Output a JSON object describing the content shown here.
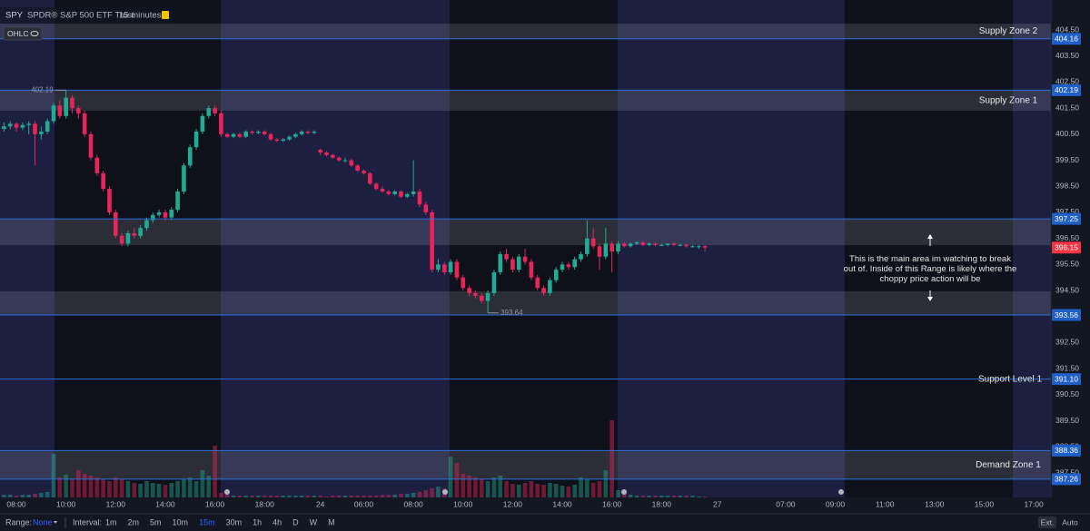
{
  "header": {
    "symbol": "SPY",
    "name": "SPDR® S&P 500 ETF Trust",
    "interval": "15 minutes",
    "style": "OHLC"
  },
  "toolbar": {
    "range_label": "Range:",
    "range_value": "None",
    "interval_label": "Interval:",
    "intervals": [
      "1m",
      "2m",
      "5m",
      "10m",
      "15m",
      "30m",
      "1h",
      "4h",
      "D",
      "W",
      "M"
    ],
    "active_interval": 4,
    "ext": "Ext.",
    "auto": "Auto"
  },
  "chart_data": {
    "type": "candlestick",
    "up_color": "#22ab94",
    "down_color": "#e8245b",
    "level_color": "#2a6fdb",
    "last_color": "#f23645",
    "xlim": [
      -2.64,
      166.77
    ],
    "ylim": [
      386.56,
      405.65
    ],
    "xticks": [
      {
        "value": 0,
        "label": "08:00"
      },
      {
        "value": 8,
        "label": "10:00"
      },
      {
        "value": 16,
        "label": "12:00"
      },
      {
        "value": 24,
        "label": "14:00"
      },
      {
        "value": 32,
        "label": "16:00"
      },
      {
        "value": 40,
        "label": "18:00"
      },
      {
        "value": 49,
        "label": "24"
      },
      {
        "value": 56,
        "label": "06:00"
      },
      {
        "value": 64,
        "label": "08:00"
      },
      {
        "value": 72,
        "label": "10:00"
      },
      {
        "value": 80,
        "label": "12:00"
      },
      {
        "value": 88,
        "label": "14:00"
      },
      {
        "value": 96,
        "label": "16:00"
      },
      {
        "value": 104,
        "label": "18:00"
      },
      {
        "value": 113,
        "label": "27"
      },
      {
        "value": 124,
        "label": "07:00"
      },
      {
        "value": 132,
        "label": "09:00"
      },
      {
        "value": 140,
        "label": "11:00"
      },
      {
        "value": 148,
        "label": "13:00"
      },
      {
        "value": 156,
        "label": "15:00"
      },
      {
        "value": 164,
        "label": "17:00"
      }
    ],
    "yticks": [
      {
        "value": 404.5,
        "label": "404.50"
      },
      {
        "value": 403.5,
        "label": "403.50"
      },
      {
        "value": 402.5,
        "label": "402.50"
      },
      {
        "value": 401.5,
        "label": "401.50"
      },
      {
        "value": 400.5,
        "label": "400.50"
      },
      {
        "value": 399.5,
        "label": "399.50"
      },
      {
        "value": 398.5,
        "label": "398.50"
      },
      {
        "value": 397.5,
        "label": "397.50"
      },
      {
        "value": 396.5,
        "label": "396.50"
      },
      {
        "value": 395.5,
        "label": "395.50"
      },
      {
        "value": 394.5,
        "label": "394.50"
      },
      {
        "value": 393.5,
        "label": "393.50"
      },
      {
        "value": 392.5,
        "label": "392.50"
      },
      {
        "value": 391.5,
        "label": "391.50"
      },
      {
        "value": 390.5,
        "label": "390.50"
      },
      {
        "value": 389.5,
        "label": "389.50"
      },
      {
        "value": 388.5,
        "label": "388.50"
      },
      {
        "value": 387.5,
        "label": "387.50"
      }
    ],
    "x": [
      -2,
      -1,
      0,
      1,
      2,
      3,
      4,
      5,
      6,
      7,
      8,
      9,
      10,
      11,
      12,
      13,
      14,
      15,
      16,
      17,
      18,
      19,
      20,
      21,
      22,
      23,
      24,
      25,
      26,
      27,
      28,
      29,
      30,
      31,
      32,
      33,
      34,
      35,
      36,
      37,
      38,
      39,
      40,
      41,
      42,
      43,
      44,
      45,
      46,
      47,
      48,
      49,
      50,
      51,
      52,
      53,
      54,
      55,
      56,
      57,
      58,
      59,
      60,
      61,
      62,
      63,
      64,
      65,
      66,
      67,
      68,
      69,
      70,
      71,
      72,
      73,
      74,
      75,
      76,
      77,
      78,
      79,
      80,
      81,
      82,
      83,
      84,
      85,
      86,
      87,
      88,
      89,
      90,
      91,
      92,
      93,
      94,
      95,
      96,
      97,
      98,
      99,
      100,
      101,
      102,
      103,
      104,
      105,
      106,
      107,
      108,
      109,
      110,
      111
    ],
    "ohlc": [
      [
        400.7,
        400.95,
        400.6,
        400.8
      ],
      [
        400.8,
        401.0,
        400.7,
        400.9
      ],
      [
        400.9,
        400.95,
        400.6,
        400.75
      ],
      [
        400.75,
        400.95,
        400.65,
        400.85
      ],
      [
        400.85,
        401.0,
        400.5,
        400.9
      ],
      [
        400.9,
        401.0,
        399.3,
        400.5
      ],
      [
        400.5,
        400.8,
        400.3,
        400.6
      ],
      [
        400.6,
        401.1,
        400.5,
        401.0
      ],
      [
        401.0,
        401.7,
        400.9,
        401.6
      ],
      [
        401.6,
        401.8,
        401.1,
        401.2
      ],
      [
        401.2,
        402.19,
        401.1,
        401.9
      ],
      [
        401.9,
        402.0,
        401.3,
        401.5
      ],
      [
        401.5,
        401.6,
        401.1,
        401.3
      ],
      [
        401.3,
        401.4,
        400.4,
        400.5
      ],
      [
        400.5,
        400.6,
        399.5,
        399.6
      ],
      [
        399.6,
        399.7,
        398.9,
        399.0
      ],
      [
        399.0,
        399.1,
        398.3,
        398.4
      ],
      [
        398.4,
        398.5,
        397.4,
        397.5
      ],
      [
        397.5,
        397.6,
        396.5,
        396.6
      ],
      [
        396.6,
        396.7,
        396.2,
        396.3
      ],
      [
        396.3,
        396.8,
        396.2,
        396.7
      ],
      [
        396.7,
        396.9,
        396.5,
        396.6
      ],
      [
        396.6,
        397.0,
        396.5,
        396.9
      ],
      [
        396.9,
        397.3,
        396.8,
        397.2
      ],
      [
        397.2,
        397.5,
        397.1,
        397.4
      ],
      [
        397.4,
        397.6,
        397.3,
        397.5
      ],
      [
        397.5,
        397.6,
        397.2,
        397.3
      ],
      [
        397.3,
        397.7,
        397.2,
        397.6
      ],
      [
        397.6,
        398.4,
        397.5,
        398.3
      ],
      [
        398.3,
        399.4,
        398.2,
        399.3
      ],
      [
        399.3,
        400.1,
        399.2,
        400.0
      ],
      [
        400.0,
        400.7,
        399.9,
        400.6
      ],
      [
        400.6,
        401.3,
        400.5,
        401.2
      ],
      [
        401.2,
        401.6,
        401.1,
        401.5
      ],
      [
        401.5,
        401.6,
        401.2,
        401.3
      ],
      [
        401.3,
        401.4,
        400.4,
        400.5
      ],
      [
        400.5,
        400.55,
        400.35,
        400.4
      ],
      [
        400.4,
        400.55,
        400.35,
        400.5
      ],
      [
        400.5,
        400.55,
        400.35,
        400.4
      ],
      [
        400.4,
        400.65,
        400.35,
        400.6
      ],
      [
        400.6,
        400.65,
        400.5,
        400.55
      ],
      [
        400.55,
        400.65,
        400.5,
        400.6
      ],
      [
        400.6,
        400.65,
        400.45,
        400.5
      ],
      [
        400.5,
        400.55,
        400.25,
        400.3
      ],
      [
        400.3,
        400.35,
        400.2,
        400.25
      ],
      [
        400.25,
        400.35,
        400.2,
        400.3
      ],
      [
        400.3,
        400.45,
        400.25,
        400.4
      ],
      [
        400.4,
        400.55,
        400.35,
        400.5
      ],
      [
        400.5,
        400.65,
        400.45,
        400.6
      ],
      [
        400.6,
        400.65,
        400.5,
        400.55
      ],
      [
        400.55,
        400.65,
        400.5,
        400.6
      ],
      [
        399.9,
        399.95,
        399.7,
        399.8
      ],
      [
        399.8,
        399.85,
        399.65,
        399.7
      ],
      [
        399.7,
        399.75,
        399.55,
        399.6
      ],
      [
        399.6,
        399.65,
        399.45,
        399.5
      ],
      [
        399.5,
        399.6,
        399.4,
        399.5
      ],
      [
        399.5,
        399.55,
        399.25,
        399.3
      ],
      [
        399.3,
        399.35,
        399.05,
        399.1
      ],
      [
        399.1,
        399.15,
        398.95,
        399.0
      ],
      [
        399.0,
        399.05,
        398.55,
        398.6
      ],
      [
        398.6,
        398.65,
        398.35,
        398.4
      ],
      [
        398.4,
        398.5,
        398.25,
        398.3
      ],
      [
        398.3,
        398.35,
        398.15,
        398.2
      ],
      [
        398.2,
        398.35,
        398.15,
        398.3
      ],
      [
        398.3,
        398.35,
        398.05,
        398.1
      ],
      [
        398.1,
        398.25,
        398.05,
        398.2
      ],
      [
        398.2,
        399.5,
        398.1,
        398.3
      ],
      [
        398.3,
        398.4,
        397.7,
        397.8
      ],
      [
        397.8,
        397.9,
        397.4,
        397.5
      ],
      [
        397.5,
        397.6,
        395.2,
        395.3
      ],
      [
        395.3,
        395.7,
        395.2,
        395.5
      ],
      [
        395.5,
        395.6,
        395.1,
        395.2
      ],
      [
        395.2,
        395.7,
        395.1,
        395.6
      ],
      [
        395.6,
        395.7,
        394.9,
        395.0
      ],
      [
        395.0,
        395.1,
        394.5,
        394.6
      ],
      [
        394.6,
        394.7,
        394.3,
        394.4
      ],
      [
        394.4,
        394.5,
        394.2,
        394.3
      ],
      [
        394.3,
        394.4,
        394.0,
        394.1
      ],
      [
        394.1,
        394.5,
        393.64,
        394.4
      ],
      [
        394.4,
        395.3,
        394.3,
        395.2
      ],
      [
        395.2,
        396.0,
        395.1,
        395.9
      ],
      [
        395.9,
        396.1,
        395.6,
        395.7
      ],
      [
        395.7,
        395.8,
        395.2,
        395.3
      ],
      [
        395.3,
        395.9,
        395.2,
        395.8
      ],
      [
        395.8,
        396.1,
        395.5,
        395.6
      ],
      [
        395.6,
        395.7,
        394.9,
        395.0
      ],
      [
        395.0,
        395.1,
        394.5,
        394.6
      ],
      [
        394.6,
        394.7,
        394.3,
        394.4
      ],
      [
        394.4,
        395.0,
        394.3,
        394.9
      ],
      [
        394.9,
        395.4,
        394.8,
        395.3
      ],
      [
        395.3,
        395.6,
        395.2,
        395.5
      ],
      [
        395.5,
        395.6,
        395.3,
        395.4
      ],
      [
        395.4,
        395.8,
        395.3,
        395.7
      ],
      [
        395.7,
        396.0,
        395.6,
        395.9
      ],
      [
        395.9,
        397.2,
        395.8,
        396.5
      ],
      [
        396.5,
        396.9,
        396.1,
        396.2
      ],
      [
        396.2,
        396.3,
        395.3,
        395.8
      ],
      [
        395.8,
        396.9,
        395.7,
        396.3
      ],
      [
        396.3,
        396.4,
        395.2,
        396.0
      ],
      [
        396.0,
        396.4,
        395.9,
        396.3
      ],
      [
        396.3,
        396.35,
        396.15,
        396.2
      ],
      [
        396.2,
        396.35,
        396.15,
        396.3
      ],
      [
        396.3,
        396.4,
        396.25,
        396.35
      ],
      [
        396.35,
        396.4,
        396.2,
        396.25
      ],
      [
        396.25,
        396.35,
        396.2,
        396.3
      ],
      [
        396.3,
        396.35,
        396.2,
        396.25
      ],
      [
        396.25,
        396.3,
        396.2,
        396.25
      ],
      [
        396.25,
        396.3,
        396.2,
        396.3
      ],
      [
        396.3,
        396.35,
        396.2,
        396.25
      ],
      [
        396.25,
        396.3,
        396.2,
        396.25
      ],
      [
        396.25,
        396.3,
        396.15,
        396.2
      ],
      [
        396.2,
        396.25,
        396.15,
        396.2
      ],
      [
        396.2,
        396.25,
        396.1,
        396.2
      ],
      [
        396.2,
        396.25,
        396.0,
        396.15
      ]
    ],
    "volume": [
      3,
      3,
      2,
      3,
      3,
      4,
      5,
      6,
      48,
      22,
      25,
      20,
      30,
      26,
      24,
      22,
      20,
      18,
      22,
      20,
      18,
      16,
      15,
      18,
      16,
      15,
      14,
      16,
      18,
      20,
      22,
      18,
      30,
      24,
      57,
      5,
      3,
      2,
      2,
      2,
      2,
      2,
      2,
      2,
      2,
      2,
      2,
      2,
      2,
      2,
      2,
      2,
      1,
      2,
      2,
      2,
      2,
      2,
      2,
      2,
      2,
      3,
      3,
      3,
      4,
      4,
      5,
      6,
      8,
      10,
      12,
      10,
      45,
      38,
      26,
      24,
      22,
      20,
      18,
      22,
      24,
      18,
      15,
      14,
      16,
      18,
      15,
      14,
      16,
      15,
      13,
      12,
      14,
      22,
      20,
      16,
      18,
      30,
      85,
      8,
      4,
      3,
      2,
      2,
      2,
      2,
      2,
      2,
      2,
      2,
      2,
      2,
      1,
      1
    ],
    "zones": [
      {
        "name": "Supply Zone 2",
        "low": 404.16,
        "high": 404.74
      },
      {
        "name": "Supply Zone 1",
        "low": 401.4,
        "high": 402.19
      },
      {
        "low": 396.24,
        "high": 397.25
      },
      {
        "low": 393.56,
        "high": 394.47
      },
      {
        "name": "Demand Zone 1",
        "low": 387.26,
        "high": 388.36
      }
    ],
    "levels": [
      {
        "value": 404.16,
        "label": "404.16"
      },
      {
        "value": 402.19,
        "label": "402.19"
      },
      {
        "value": 397.25,
        "label": "397.25"
      },
      {
        "value": 393.56,
        "label": "393.56"
      },
      {
        "value": 391.1,
        "label": "391.10",
        "name": "Support Level 1"
      },
      {
        "value": 388.36,
        "label": "388.36"
      },
      {
        "value": 387.26,
        "label": "387.26"
      }
    ],
    "last": {
      "value": 396.15,
      "label": "396.15"
    },
    "markers": [
      {
        "x": 8,
        "value": 402.19,
        "label": "402.19"
      },
      {
        "x": 76,
        "value": 393.64,
        "label": "393.64"
      }
    ],
    "annotation": "This is the main area im watching to break out of. Inside of this Range is likely where the choppy price action will be"
  }
}
